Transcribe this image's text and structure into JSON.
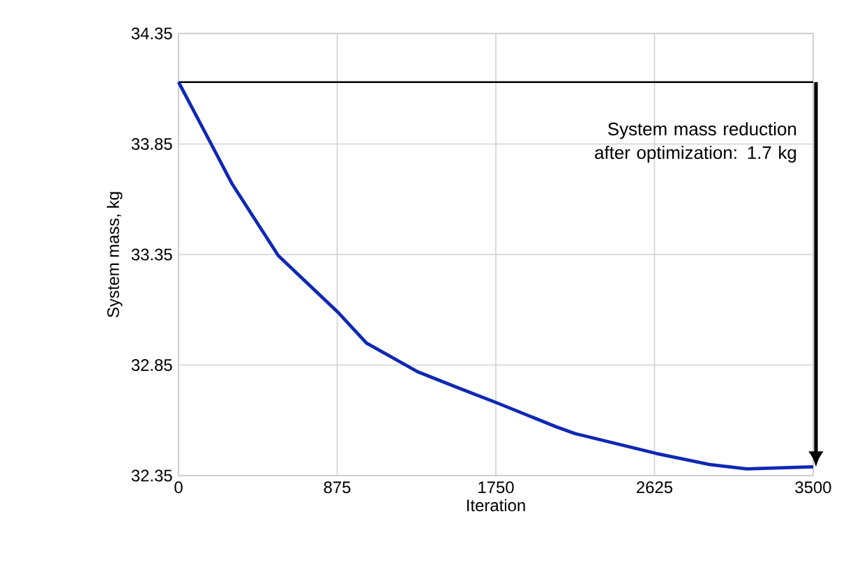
{
  "chart_data": {
    "type": "line",
    "xlabel": "Iteration",
    "ylabel": "System mass, kg",
    "annotations": [
      "System mass reduction after optimization: 1.7 kg"
    ],
    "xlim": [
      0,
      3500
    ],
    "xticks": [
      0,
      875,
      1750,
      2625,
      3500
    ],
    "ylim": [
      32.35,
      34.35
    ],
    "yticks": [
      32.35,
      32.85,
      33.35,
      33.85,
      34.35
    ],
    "grid": true,
    "line_style": "solid",
    "marker": "none",
    "ref_lines": [
      {
        "axis": "y",
        "value": 34.13,
        "color": "#000000"
      }
    ],
    "series": [
      {
        "color": "#0f28b4",
        "x": [
          0,
          180,
          295,
          550,
          878,
          1036,
          1318,
          1548,
          1753,
          2085,
          2187,
          2636,
          2930,
          3134,
          3500
        ],
        "values": [
          34.13,
          33.85,
          33.67,
          33.345,
          33.09,
          32.95,
          32.82,
          32.745,
          32.68,
          32.57,
          32.54,
          32.45,
          32.4,
          32.38,
          32.39
        ]
      }
    ]
  }
}
